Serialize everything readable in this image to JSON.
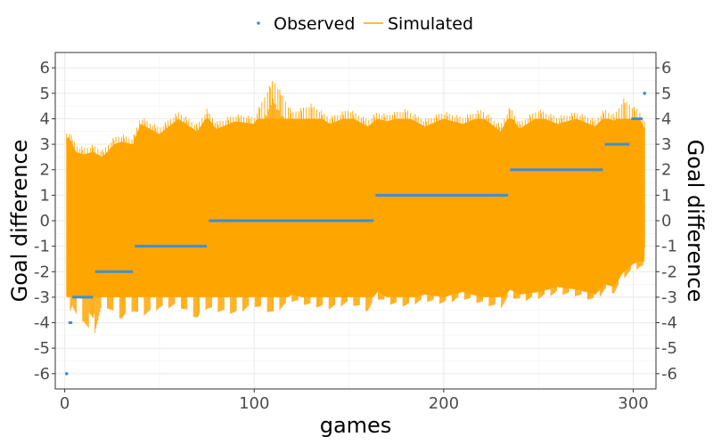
{
  "chart_data": {
    "type": "line",
    "xlabel": "games",
    "ylabel_left": "Goal difference",
    "ylabel_right": "Goal difference",
    "xlim": [
      -5,
      312
    ],
    "ylim": [
      -6.6,
      6.6
    ],
    "x_ticks": [
      0,
      100,
      200,
      300
    ],
    "y_ticks": [
      -6,
      -5,
      -4,
      -3,
      -2,
      -1,
      0,
      1,
      2,
      3,
      4,
      5,
      6
    ],
    "grid": true,
    "legend": {
      "placement": "top",
      "entries": [
        {
          "name": "Observed",
          "kind": "point"
        },
        {
          "name": "Simulated",
          "kind": "line"
        }
      ]
    },
    "colors": {
      "observed": "#3d8fd6",
      "simulated": "#ffa500"
    },
    "series": [
      {
        "name": "Simulated",
        "kind": "band",
        "x": [
          1,
          2,
          4,
          6,
          10,
          15,
          20,
          26,
          30,
          36,
          40,
          50,
          60,
          70,
          75,
          80,
          90,
          100,
          110,
          120,
          130,
          140,
          150,
          160,
          165,
          170,
          180,
          190,
          200,
          210,
          220,
          230,
          235,
          240,
          250,
          260,
          270,
          280,
          285,
          290,
          295,
          300,
          303,
          306
        ],
        "upper": [
          3.7,
          3.8,
          3.5,
          3.2,
          3.1,
          3.2,
          3.0,
          3.5,
          3.6,
          3.5,
          4.3,
          3.9,
          4.5,
          4.0,
          4.6,
          4.1,
          4.4,
          4.3,
          5.8,
          4.5,
          4.8,
          4.3,
          4.6,
          4.2,
          4.5,
          4.4,
          4.6,
          4.2,
          4.5,
          4.3,
          4.6,
          4.0,
          4.7,
          4.1,
          4.6,
          4.3,
          4.5,
          4.2,
          4.6,
          4.4,
          5.0,
          4.7,
          4.6,
          4.1
        ],
        "lower": [
          -3.9,
          -3.8,
          -3.5,
          -3.9,
          -4.1,
          -4.8,
          -3.4,
          -3.8,
          -4.0,
          -3.7,
          -3.9,
          -3.6,
          -3.5,
          -4.0,
          -3.6,
          -3.7,
          -3.8,
          -3.5,
          -3.8,
          -3.3,
          -3.5,
          -3.6,
          -3.4,
          -3.7,
          -3.2,
          -3.4,
          -3.5,
          -3.3,
          -3.4,
          -3.2,
          -3.4,
          -3.6,
          -3.1,
          -3.3,
          -3.2,
          -3.0,
          -3.1,
          -3.3,
          -2.9,
          -3.0,
          -2.4,
          -2.1,
          -2.0,
          -2.0
        ]
      },
      {
        "name": "Observed",
        "kind": "steps",
        "segments": [
          {
            "x": [
              1,
              1
            ],
            "y": -6
          },
          {
            "x": [
              2,
              4
            ],
            "y": -4
          },
          {
            "x": [
              4,
              15
            ],
            "y": -3
          },
          {
            "x": [
              16,
              36
            ],
            "y": -2
          },
          {
            "x": [
              37,
              75
            ],
            "y": -1
          },
          {
            "x": [
              76,
              163
            ],
            "y": 0
          },
          {
            "x": [
              164,
              234
            ],
            "y": 1
          },
          {
            "x": [
              235,
              284
            ],
            "y": 2
          },
          {
            "x": [
              285,
              298
            ],
            "y": 3
          },
          {
            "x": [
              299,
              305
            ],
            "y": 4
          },
          {
            "x": [
              306,
              306
            ],
            "y": 5
          }
        ]
      }
    ]
  }
}
